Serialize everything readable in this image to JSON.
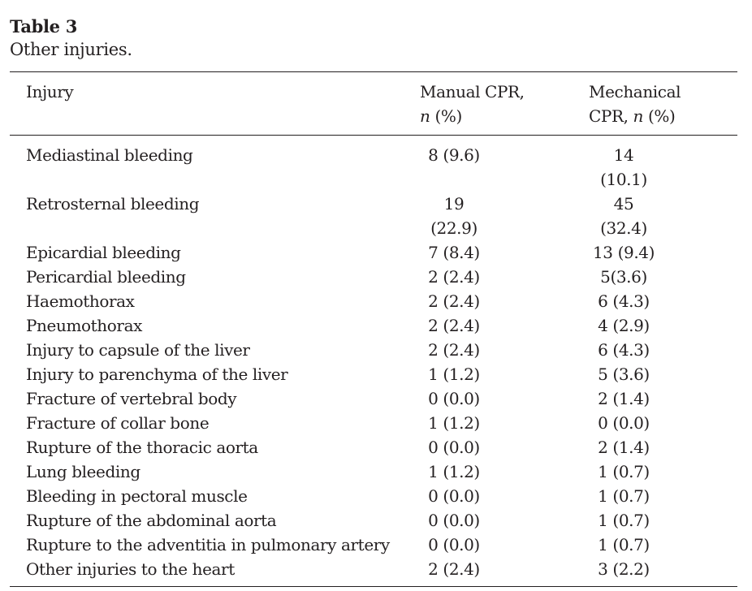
{
  "caption": {
    "label": "Table 3",
    "title": "Other injuries."
  },
  "columns": {
    "injury": "Injury",
    "manual_line1": "Manual CPR,",
    "manual_n": "n",
    "manual_rest": " (%)",
    "mech_line1": "Mechanical",
    "mech_line2_pre": "CPR, ",
    "mech_n": "n",
    "mech_rest": " (%)"
  },
  "rows": [
    {
      "injury": "Mediastinal bleeding",
      "manual": "8 (9.6)",
      "mechanical": "14 (10.1)"
    },
    {
      "injury": "Retrosternal bleeding",
      "manual": "19 (22.9)",
      "mechanical": "45 (32.4)"
    },
    {
      "injury": "Epicardial bleeding",
      "manual": "7 (8.4)",
      "mechanical": "13 (9.4)"
    },
    {
      "injury": "Pericardial bleeding",
      "manual": "2 (2.4)",
      "mechanical": "5(3.6)"
    },
    {
      "injury": "Haemothorax",
      "manual": "2 (2.4)",
      "mechanical": "6 (4.3)"
    },
    {
      "injury": "Pneumothorax",
      "manual": "2 (2.4)",
      "mechanical": "4 (2.9)"
    },
    {
      "injury": "Injury to capsule of the liver",
      "manual": "2 (2.4)",
      "mechanical": "6 (4.3)"
    },
    {
      "injury": "Injury to parenchyma of the liver",
      "manual": "1 (1.2)",
      "mechanical": "5 (3.6)"
    },
    {
      "injury": "Fracture of vertebral body",
      "manual": "0 (0.0)",
      "mechanical": "2 (1.4)"
    },
    {
      "injury": "Fracture of collar bone",
      "manual": "1 (1.2)",
      "mechanical": "0 (0.0)"
    },
    {
      "injury": "Rupture of the thoracic aorta",
      "manual": "0 (0.0)",
      "mechanical": "2 (1.4)"
    },
    {
      "injury": "Lung bleeding",
      "manual": "1 (1.2)",
      "mechanical": "1 (0.7)"
    },
    {
      "injury": "Bleeding in pectoral muscle",
      "manual": "0 (0.0)",
      "mechanical": "1 (0.7)"
    },
    {
      "injury": "Rupture of the abdominal aorta",
      "manual": "0 (0.0)",
      "mechanical": "1 (0.7)"
    },
    {
      "injury": "Rupture to the adventitia in pulmonary artery",
      "manual": "0 (0.0)",
      "mechanical": "1 (0.7)"
    },
    {
      "injury": "Other injuries to the heart",
      "manual": "2 (2.4)",
      "mechanical": "3 (2.2)"
    }
  ]
}
